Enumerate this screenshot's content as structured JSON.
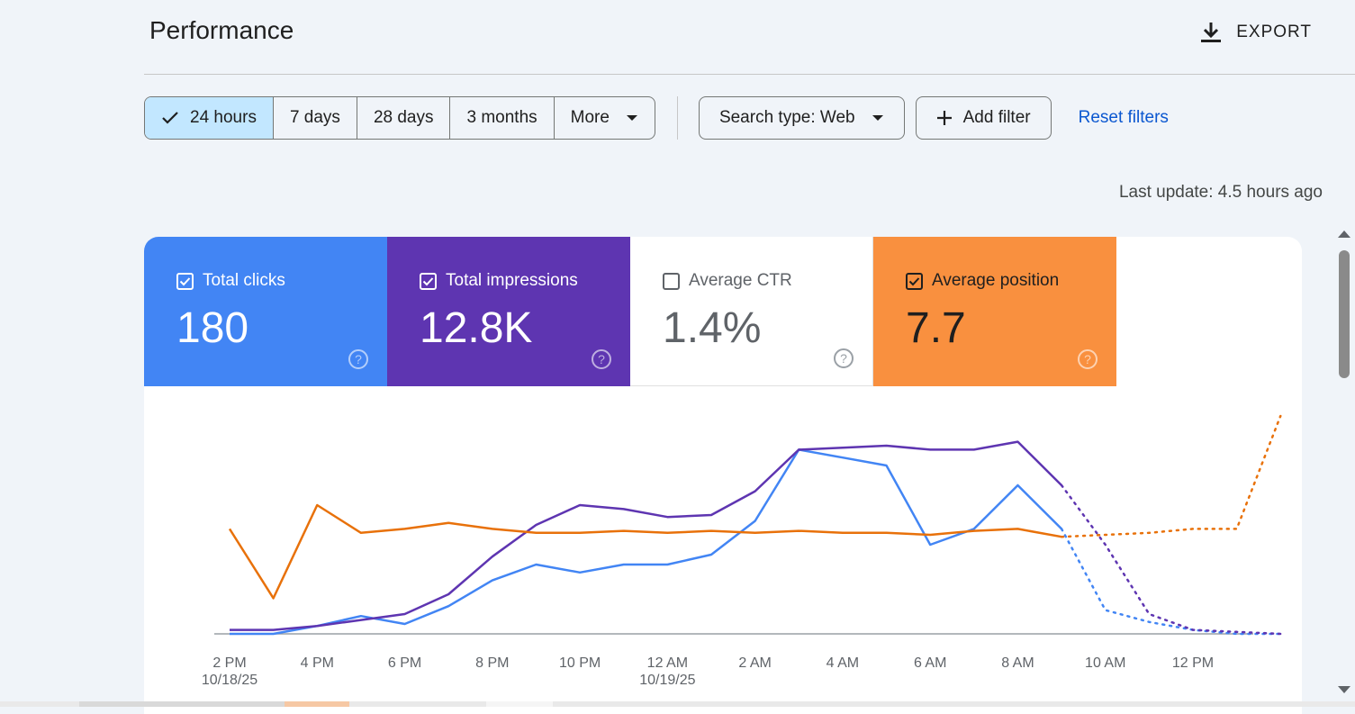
{
  "header": {
    "title": "Performance",
    "export_label": "EXPORT"
  },
  "filters": {
    "date_ranges": [
      {
        "label": "24 hours",
        "selected": true
      },
      {
        "label": "7 days",
        "selected": false
      },
      {
        "label": "28 days",
        "selected": false
      },
      {
        "label": "3 months",
        "selected": false
      },
      {
        "label": "More",
        "selected": false
      }
    ],
    "search_type": "Search type: Web",
    "add_filter": "Add filter",
    "reset_filters": "Reset filters"
  },
  "last_update": "Last update: 4.5 hours ago",
  "metrics": [
    {
      "label": "Total clicks",
      "value": "180",
      "checked": true,
      "color": "#4285f4"
    },
    {
      "label": "Total impressions",
      "value": "12.8K",
      "checked": true,
      "color": "#5e35b1"
    },
    {
      "label": "Average CTR",
      "value": "1.4%",
      "checked": false,
      "color": "#ffffff"
    },
    {
      "label": "Average position",
      "value": "7.7",
      "checked": true,
      "color": "#f9903f"
    }
  ],
  "chart_data": {
    "type": "line",
    "x_ticks": [
      {
        "label": "2 PM",
        "sub": "10/18/25"
      },
      {
        "label": "4 PM",
        "sub": ""
      },
      {
        "label": "6 PM",
        "sub": ""
      },
      {
        "label": "8 PM",
        "sub": ""
      },
      {
        "label": "10 PM",
        "sub": ""
      },
      {
        "label": "12 AM",
        "sub": "10/19/25"
      },
      {
        "label": "2 AM",
        "sub": ""
      },
      {
        "label": "4 AM",
        "sub": ""
      },
      {
        "label": "6 AM",
        "sub": ""
      },
      {
        "label": "8 AM",
        "sub": ""
      },
      {
        "label": "10 AM",
        "sub": ""
      },
      {
        "label": "12 PM",
        "sub": ""
      }
    ],
    "x_hours": [
      0,
      1,
      2,
      3,
      4,
      5,
      6,
      7,
      8,
      9,
      10,
      11,
      12,
      13,
      14,
      15,
      16,
      17,
      18,
      19,
      20,
      21,
      22,
      23,
      24
    ],
    "actual_last_index": 19,
    "series": [
      {
        "key": "clicks",
        "color": "#4285f4",
        "values": [
          0.0,
          0.0,
          0.04,
          0.09,
          0.05,
          0.14,
          0.27,
          0.35,
          0.31,
          0.35,
          0.35,
          0.4,
          0.57,
          0.93,
          0.89,
          0.85,
          0.45,
          0.53,
          0.75,
          0.53,
          0.12,
          0.06,
          0.02,
          0.0,
          0.0
        ]
      },
      {
        "key": "impressions",
        "color": "#5e35b1",
        "values": [
          0.02,
          0.02,
          0.04,
          0.07,
          0.1,
          0.2,
          0.39,
          0.55,
          0.65,
          0.63,
          0.59,
          0.6,
          0.72,
          0.93,
          0.94,
          0.95,
          0.93,
          0.93,
          0.97,
          0.75,
          0.45,
          0.1,
          0.02,
          0.01,
          0.0
        ]
      },
      {
        "key": "position",
        "color": "#e8710a",
        "values": [
          0.53,
          0.18,
          0.65,
          0.51,
          0.53,
          0.56,
          0.53,
          0.51,
          0.51,
          0.52,
          0.51,
          0.52,
          0.51,
          0.52,
          0.51,
          0.51,
          0.5,
          0.52,
          0.53,
          0.49,
          0.5,
          0.51,
          0.53,
          0.53,
          1.1
        ]
      }
    ]
  }
}
